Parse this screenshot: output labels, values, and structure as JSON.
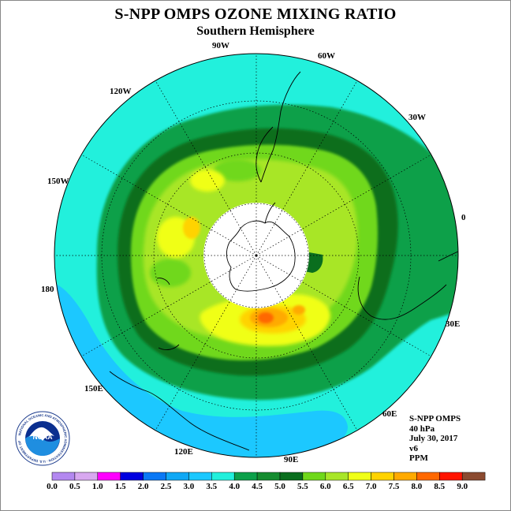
{
  "header": {
    "title": "S-NPP OMPS OZONE MIXING RATIO",
    "subtitle": "Southern Hemisphere"
  },
  "map": {
    "projection": "south polar stereographic",
    "longitude_labels": [
      "90W",
      "60W",
      "30W",
      "0",
      "30E",
      "60E",
      "90E",
      "120E",
      "150E",
      "180",
      "150W",
      "120W"
    ],
    "polar_data_gap_color": "#ffffff",
    "features": [
      "Antarctica",
      "South America",
      "Africa",
      "Australia",
      "New Zealand"
    ]
  },
  "info": {
    "instrument": "S-NPP OMPS",
    "pressure": "40 hPa",
    "date": "July 30, 2017",
    "version": "v6",
    "units": "PPM"
  },
  "colorbar": {
    "ticks": [
      "0.0",
      "0.5",
      "1.0",
      "1.5",
      "2.0",
      "2.5",
      "3.0",
      "3.5",
      "4.0",
      "4.5",
      "5.0",
      "5.5",
      "6.0",
      "6.5",
      "7.0",
      "7.5",
      "8.0",
      "8.5",
      "9.0"
    ],
    "colors": [
      "#b388f0",
      "#d8a8f0",
      "#ff00ff",
      "#0000e0",
      "#0a78f5",
      "#10a8f5",
      "#1cc8ff",
      "#22f0dc",
      "#0ca04a",
      "#158c30",
      "#0a6e1e",
      "#6fd81a",
      "#a8e628",
      "#f0ff18",
      "#ffd300",
      "#ffaa00",
      "#ff6800",
      "#ff1400",
      "#8b4a30"
    ]
  },
  "logo": {
    "text": "NOAA",
    "ring_text": "NATIONAL OCEANIC AND ATMOSPHERIC ADMINISTRATION · U.S. DEPARTMENT OF COMMERCE"
  }
}
